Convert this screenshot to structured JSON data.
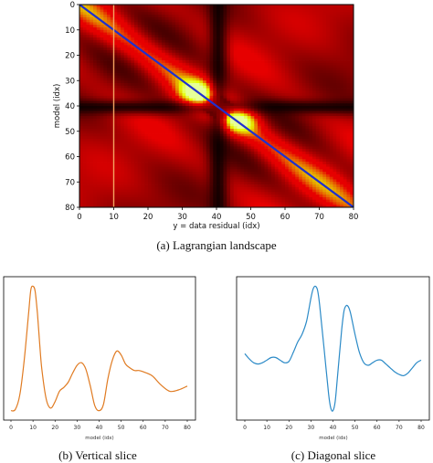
{
  "figure": {
    "captions": {
      "a": "(a) Lagrangian landscape",
      "b": "(b) Vertical slice",
      "c": "(c) Diagonal slice"
    }
  },
  "chart_data": [
    {
      "type": "heatmap",
      "xlabel": "y = data residual (idx)",
      "ylabel": "model (idx)",
      "xlim": [
        0,
        80
      ],
      "ylim": [
        0,
        80
      ],
      "xticks": [
        "0",
        "10",
        "20",
        "30",
        "40",
        "50",
        "60",
        "70",
        "80"
      ],
      "yticks": [
        "0",
        "10",
        "20",
        "30",
        "40",
        "50",
        "60",
        "70",
        "80"
      ],
      "colormap": "hot",
      "colors": {
        "low": "#000000",
        "mid": "#cc0000",
        "high": "#ffff80"
      },
      "overlays": [
        {
          "kind": "diagonal-line",
          "from": [
            0,
            0
          ],
          "to": [
            80,
            80
          ],
          "color": "#1f2fd0"
        },
        {
          "kind": "vertical-line",
          "x": 10,
          "color": "#f4a460"
        }
      ],
      "features": {
        "dark_band_center": 40,
        "bright_peak_centers": [
          [
            34,
            35
          ],
          [
            46,
            45
          ]
        ]
      }
    },
    {
      "type": "line",
      "xlabel": "model (idx)",
      "xticks": [
        "0",
        "10",
        "20",
        "30",
        "40",
        "50",
        "60",
        "70",
        "80"
      ],
      "xlim": [
        0,
        80
      ],
      "ylim": [
        0,
        1
      ],
      "series": [
        {
          "color": "#e07b22",
          "x": [
            0,
            2,
            4,
            6,
            8,
            9,
            10,
            11,
            12,
            13,
            14,
            16,
            18,
            20,
            22,
            24,
            26,
            28,
            30,
            32,
            34,
            36,
            38,
            40,
            42,
            44,
            46,
            48,
            50,
            52,
            54,
            56,
            58,
            60,
            64,
            68,
            72,
            76,
            80
          ],
          "y": [
            0.03,
            0.04,
            0.15,
            0.42,
            0.78,
            0.96,
            0.99,
            0.95,
            0.78,
            0.55,
            0.35,
            0.12,
            0.05,
            0.1,
            0.18,
            0.21,
            0.25,
            0.32,
            0.38,
            0.4,
            0.35,
            0.22,
            0.07,
            0.03,
            0.08,
            0.28,
            0.42,
            0.49,
            0.46,
            0.39,
            0.36,
            0.34,
            0.34,
            0.33,
            0.3,
            0.23,
            0.18,
            0.19,
            0.22
          ]
        }
      ]
    },
    {
      "type": "line",
      "xlabel": "model (idx)",
      "xticks": [
        "0",
        "10",
        "20",
        "30",
        "40",
        "50",
        "60",
        "70",
        "80"
      ],
      "xlim": [
        0,
        80
      ],
      "ylim": [
        0,
        1
      ],
      "series": [
        {
          "color": "#2b8ac7",
          "x": [
            0,
            2,
            4,
            6,
            8,
            10,
            12,
            14,
            16,
            18,
            20,
            22,
            24,
            26,
            28,
            30,
            31,
            32,
            33,
            34,
            36,
            38,
            39,
            40,
            41,
            42,
            44,
            45,
            46,
            47,
            48,
            50,
            52,
            54,
            56,
            58,
            60,
            62,
            64,
            66,
            68,
            70,
            72,
            74,
            76,
            78,
            80
          ],
          "y": [
            0.47,
            0.43,
            0.4,
            0.39,
            0.4,
            0.42,
            0.44,
            0.44,
            0.42,
            0.4,
            0.41,
            0.48,
            0.56,
            0.62,
            0.72,
            0.9,
            0.97,
            0.99,
            0.96,
            0.84,
            0.5,
            0.16,
            0.05,
            0.03,
            0.1,
            0.28,
            0.66,
            0.8,
            0.84,
            0.83,
            0.78,
            0.62,
            0.48,
            0.4,
            0.38,
            0.4,
            0.42,
            0.42,
            0.39,
            0.36,
            0.33,
            0.31,
            0.3,
            0.32,
            0.36,
            0.4,
            0.42
          ]
        }
      ]
    }
  ]
}
